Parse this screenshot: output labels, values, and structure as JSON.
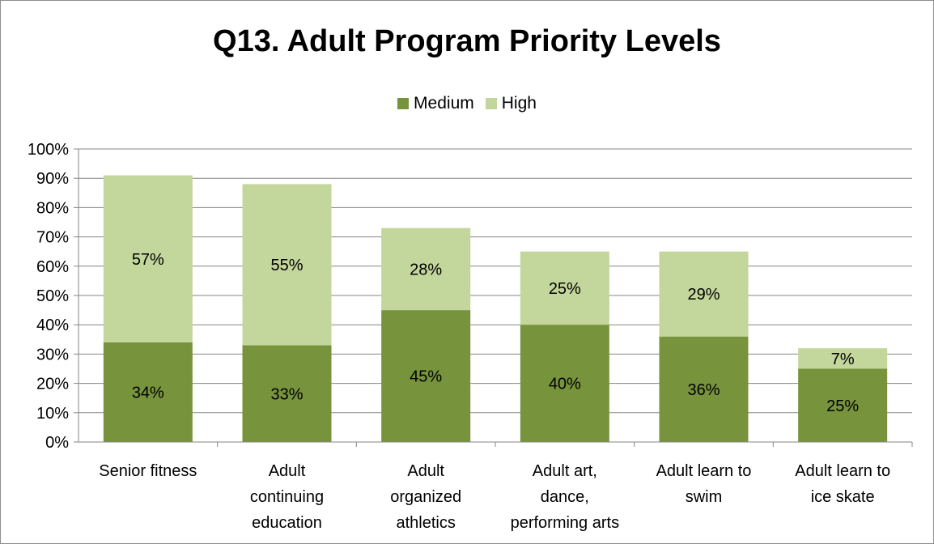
{
  "title": "Q13. Adult Program Priority Levels",
  "legend": {
    "position": "top-center"
  },
  "colors": {
    "medium": "#77933c",
    "high": "#c3d69b",
    "grid": "#868686",
    "text": "#000000"
  },
  "chart_data": {
    "type": "bar",
    "stacked": true,
    "title": "Q13. Adult Program Priority Levels",
    "categories": [
      [
        "Senior fitness"
      ],
      [
        "Adult",
        "continuing",
        "education"
      ],
      [
        "Adult",
        "organized",
        "athletics"
      ],
      [
        "Adult art,",
        "dance,",
        "performing arts"
      ],
      [
        "Adult learn to",
        "swim"
      ],
      [
        "Adult learn to",
        "ice skate"
      ]
    ],
    "series": [
      {
        "name": "Medium",
        "values": [
          34,
          33,
          45,
          40,
          36,
          25
        ],
        "labels": [
          "34%",
          "33%",
          "45%",
          "40%",
          "36%",
          "25%"
        ]
      },
      {
        "name": "High",
        "values": [
          57,
          55,
          28,
          25,
          29,
          7
        ],
        "labels": [
          "57%",
          "55%",
          "28%",
          "25%",
          "29%",
          "7%"
        ]
      }
    ],
    "ylim": [
      0,
      100
    ],
    "yticks": [
      "0%",
      "10%",
      "20%",
      "30%",
      "40%",
      "50%",
      "60%",
      "70%",
      "80%",
      "90%",
      "100%"
    ],
    "grid": true,
    "xlabel": "",
    "ylabel": ""
  }
}
